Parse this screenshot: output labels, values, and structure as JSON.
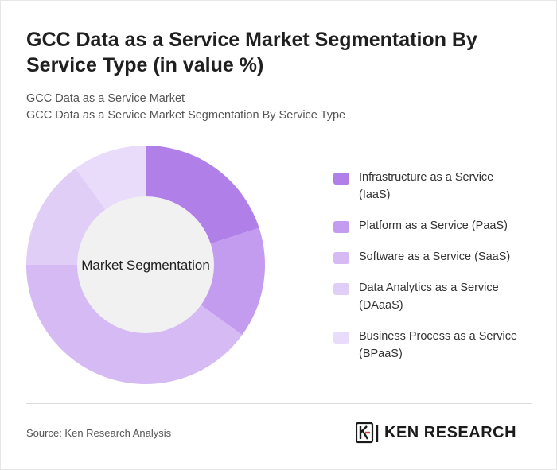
{
  "title": "GCC Data as a Service Market Segmentation By Service Type (in value %)",
  "subtitle_1": "GCC Data as a Service Market",
  "subtitle_2": "GCC Data as a Service Market Segmentation By Service Type",
  "source": "Source: Ken Research Analysis",
  "logo_text": "KEN RESEARCH",
  "chart_data": {
    "type": "pie",
    "style": "donut",
    "center_label": "Market Segmentation",
    "unit": "%",
    "categories": [
      "Infrastructure as a Service (IaaS)",
      "Platform as a Service (PaaS)",
      "Software as a Service (SaaS)",
      "Data Analytics as a Service (DAaaS)",
      "Business Process as a Service (BPaaS)"
    ],
    "values": [
      20,
      15,
      40,
      15,
      10
    ],
    "colors": [
      "#b07fe8",
      "#c39cef",
      "#d5baf4",
      "#e0cef7",
      "#e9dcfa"
    ],
    "legend_position": "right"
  },
  "legend": {
    "items": [
      {
        "line1": "Infrastructure as a Service",
        "line2": "(IaaS)"
      },
      {
        "line1": "Platform as a Service (PaaS)",
        "line2": ""
      },
      {
        "line1": "Software as a Service (SaaS)",
        "line2": ""
      },
      {
        "line1": "Data Analytics as a Service",
        "line2": "(DAaaS)"
      },
      {
        "line1": "Business Process as a Service",
        "line2": "(BPaaS)"
      }
    ]
  }
}
